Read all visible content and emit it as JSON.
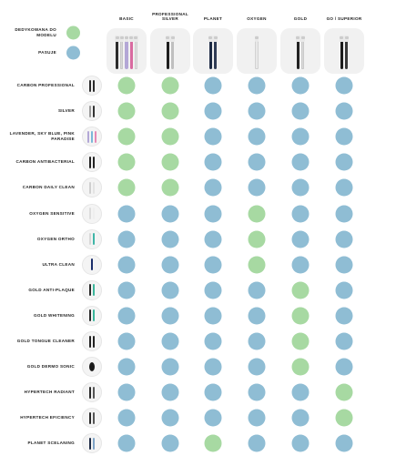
{
  "colors": {
    "dedicated": "#a7d9a2",
    "compatible": "#8fbdd4"
  },
  "legend": [
    {
      "label": "DEDYKOWANA DO MODELU",
      "key": "dedicated"
    },
    {
      "label": "PASUJE",
      "key": "compatible"
    }
  ],
  "columns": [
    {
      "title": "BASIC",
      "handles": [
        "#2b2b2b",
        "#d6d6d6",
        "#b3a7d6",
        "#d96aa0",
        "#e2e2e2"
      ]
    },
    {
      "title": "PROFESSIONAL SILVER",
      "handles": [
        "#1e1e1e",
        "#bfbfbf"
      ]
    },
    {
      "title": "PLANET",
      "handles": [
        "#1d2a44",
        "#2f3b55"
      ]
    },
    {
      "title": "OXYGEN",
      "handles": [
        "#e8e8e8"
      ]
    },
    {
      "title": "GOLD",
      "handles": [
        "#222222",
        "#d9d9d9"
      ]
    },
    {
      "title": "GO / SUPERIOR",
      "handles": [
        "#1c1c1c",
        "#3a3a3a"
      ]
    }
  ],
  "rows": [
    {
      "label": "CARBON PROFESSIONAL",
      "tips": [
        "#2a2a2a",
        "#2a2a2a"
      ],
      "tip_shape": "stick",
      "values": [
        "dedicated",
        "dedicated",
        "compatible",
        "compatible",
        "compatible",
        "compatible"
      ]
    },
    {
      "label": "SILVER",
      "tips": [
        "#9a9a9a",
        "#333333"
      ],
      "tip_shape": "stick",
      "values": [
        "dedicated",
        "dedicated",
        "compatible",
        "compatible",
        "compatible",
        "compatible"
      ]
    },
    {
      "label": "LAVENDER, SKY BLUE, PINK PARADISE",
      "tips": [
        "#b3a7d6",
        "#7ab8d9",
        "#e58ab6"
      ],
      "tip_shape": "stick",
      "values": [
        "dedicated",
        "dedicated",
        "compatible",
        "compatible",
        "compatible",
        "compatible"
      ]
    },
    {
      "label": "CARBON ANTIBACTERIAL",
      "tips": [
        "#222222",
        "#222222"
      ],
      "tip_shape": "stick",
      "values": [
        "dedicated",
        "dedicated",
        "compatible",
        "compatible",
        "compatible",
        "compatible"
      ]
    },
    {
      "label": "CARBON DAILY CLEAN",
      "tips": [
        "#cfcfcf",
        "#e3e3e3"
      ],
      "tip_shape": "stick",
      "values": [
        "dedicated",
        "dedicated",
        "compatible",
        "compatible",
        "compatible",
        "compatible"
      ]
    },
    {
      "label": "OXYGEN SENSITIVE",
      "tips": [
        "#dddddd",
        "#eeeeee"
      ],
      "tip_shape": "stick",
      "values": [
        "compatible",
        "compatible",
        "compatible",
        "dedicated",
        "compatible",
        "compatible"
      ]
    },
    {
      "label": "OXYGEN ORTHO",
      "tips": [
        "#d8d8d8",
        "#3fb6a8"
      ],
      "tip_shape": "stick",
      "values": [
        "compatible",
        "compatible",
        "compatible",
        "dedicated",
        "compatible",
        "compatible"
      ]
    },
    {
      "label": "ULTRA CLEAN",
      "tips": [
        "#1b2e6b"
      ],
      "tip_shape": "stick",
      "values": [
        "compatible",
        "compatible",
        "compatible",
        "dedicated",
        "compatible",
        "compatible"
      ]
    },
    {
      "label": "GOLD ANTI-PLAQUE",
      "tips": [
        "#2a2a2a",
        "#3ab59a"
      ],
      "tip_shape": "stick",
      "values": [
        "compatible",
        "compatible",
        "compatible",
        "compatible",
        "dedicated",
        "compatible"
      ]
    },
    {
      "label": "GOLD WHITENING",
      "tips": [
        "#2a2a2a",
        "#3ab59a"
      ],
      "tip_shape": "stick",
      "values": [
        "compatible",
        "compatible",
        "compatible",
        "compatible",
        "dedicated",
        "compatible"
      ]
    },
    {
      "label": "GOLD TONGUE CLEANER",
      "tips": [
        "#222222",
        "#222222"
      ],
      "tip_shape": "stick",
      "values": [
        "compatible",
        "compatible",
        "compatible",
        "compatible",
        "dedicated",
        "compatible"
      ]
    },
    {
      "label": "GOLD DERMO SONIC",
      "tips": [
        "#1a1a1a"
      ],
      "tip_shape": "round",
      "values": [
        "compatible",
        "compatible",
        "compatible",
        "compatible",
        "dedicated",
        "compatible"
      ]
    },
    {
      "label": "HYPERTECH RADIANT",
      "tips": [
        "#2a2a2a",
        "#555555"
      ],
      "tip_shape": "stick",
      "values": [
        "compatible",
        "compatible",
        "compatible",
        "compatible",
        "compatible",
        "dedicated"
      ]
    },
    {
      "label": "HYPERTECH EFICIENCY",
      "tips": [
        "#2a2a2a",
        "#555555"
      ],
      "tip_shape": "stick",
      "values": [
        "compatible",
        "compatible",
        "compatible",
        "compatible",
        "compatible",
        "dedicated"
      ]
    },
    {
      "label": "PLANET SCELANING",
      "tips": [
        "#1d2a44",
        "#7ea3c6"
      ],
      "tip_shape": "stick",
      "values": [
        "compatible",
        "compatible",
        "dedicated",
        "compatible",
        "compatible",
        "compatible"
      ]
    }
  ]
}
